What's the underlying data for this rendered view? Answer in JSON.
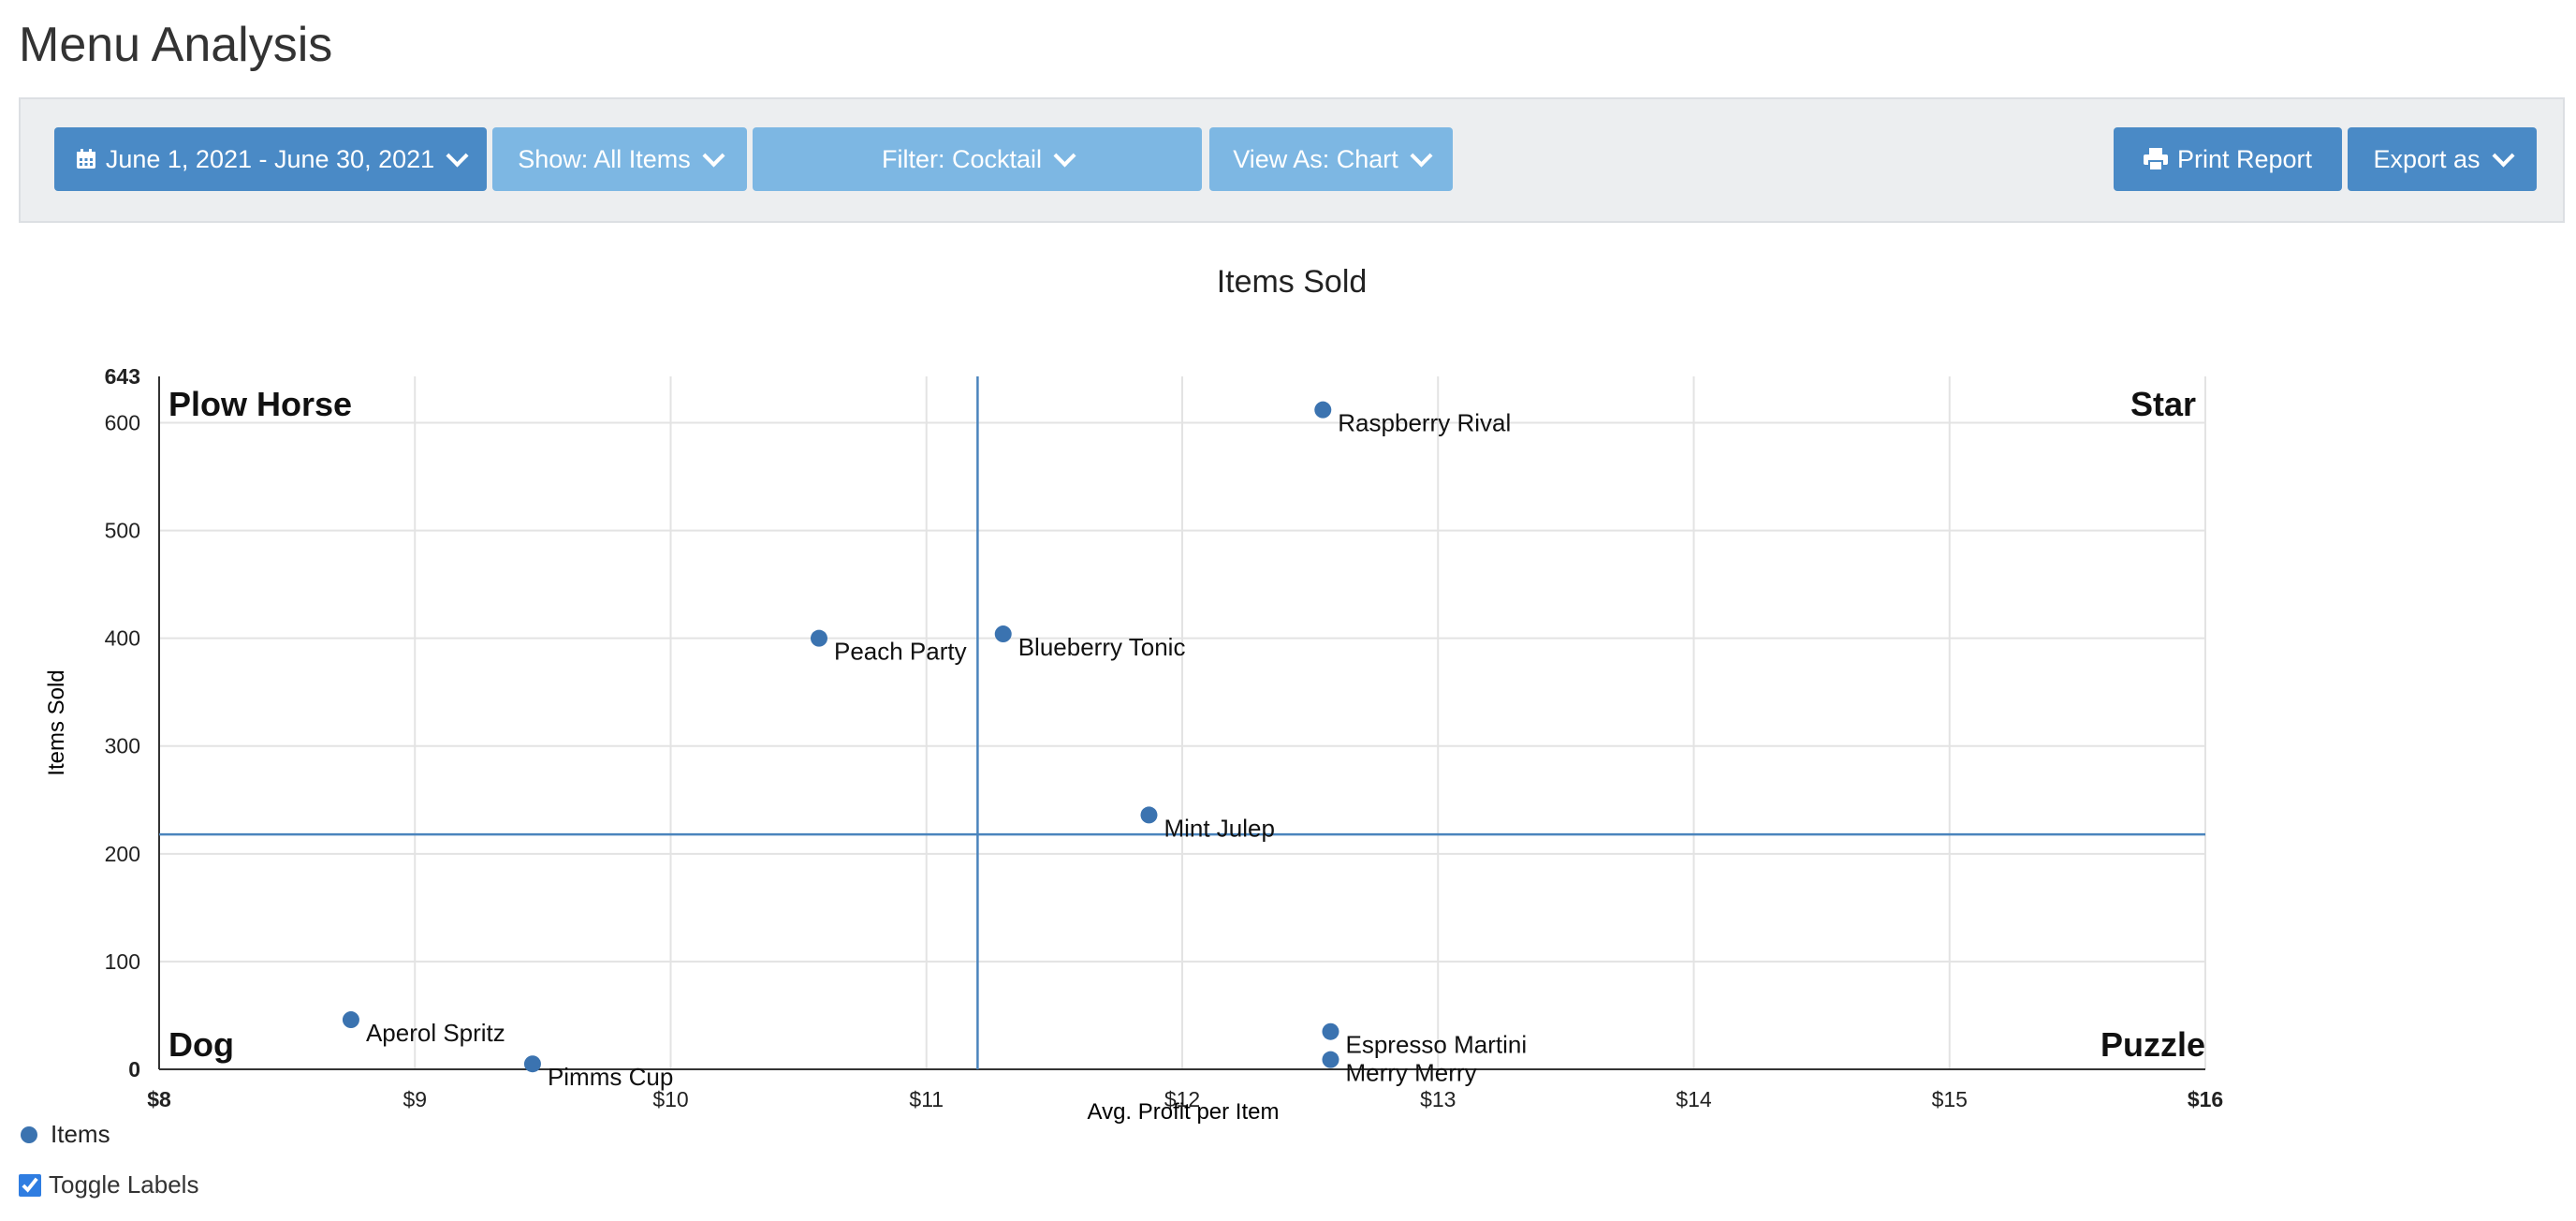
{
  "page": {
    "title": "Menu Analysis"
  },
  "toolbar": {
    "date_range": "June 1, 2021 - June 30, 2021",
    "show": "Show: All Items",
    "filter": "Filter: Cocktail",
    "view_as": "View As: Chart",
    "print": "Print Report",
    "export": "Export as"
  },
  "colors": {
    "primary_button": "#4a8ac6",
    "secondary_button": "#7db7e3",
    "series": "#3b73b0"
  },
  "chart_data": {
    "type": "scatter",
    "title": "Items Sold",
    "xlabel": "Avg. Profit per Item",
    "ylabel": "Items Sold",
    "xlim": [
      8,
      16
    ],
    "ylim": [
      0,
      643
    ],
    "x_ticks": [
      "$8",
      "$9",
      "$10",
      "$11",
      "$12",
      "$13",
      "$14",
      "$15",
      "$16"
    ],
    "y_ticks": [
      "0",
      "100",
      "200",
      "300",
      "400",
      "500",
      "600",
      "643"
    ],
    "grid": true,
    "legend": "bottom-left",
    "reference_lines": {
      "x": 11.2,
      "y": 218
    },
    "quadrants": {
      "top_left": "Plow Horse",
      "top_right": "Star",
      "bottom_left": "Dog",
      "bottom_right": "Puzzle"
    },
    "series": [
      {
        "name": "Items",
        "points": [
          {
            "label": "Raspberry Rival",
            "x": 12.55,
            "y": 612
          },
          {
            "label": "Peach Party",
            "x": 10.58,
            "y": 400
          },
          {
            "label": "Blueberry Tonic",
            "x": 11.3,
            "y": 404
          },
          {
            "label": "Mint Julep",
            "x": 11.87,
            "y": 236
          },
          {
            "label": "Aperol Spritz",
            "x": 8.75,
            "y": 46
          },
          {
            "label": "Pimms Cup",
            "x": 9.46,
            "y": 5
          },
          {
            "label": "Espresso Martini",
            "x": 12.58,
            "y": 35
          },
          {
            "label": "Merry Merry",
            "x": 12.58,
            "y": 9
          }
        ]
      }
    ]
  },
  "controls": {
    "toggle_labels": "Toggle Labels"
  }
}
